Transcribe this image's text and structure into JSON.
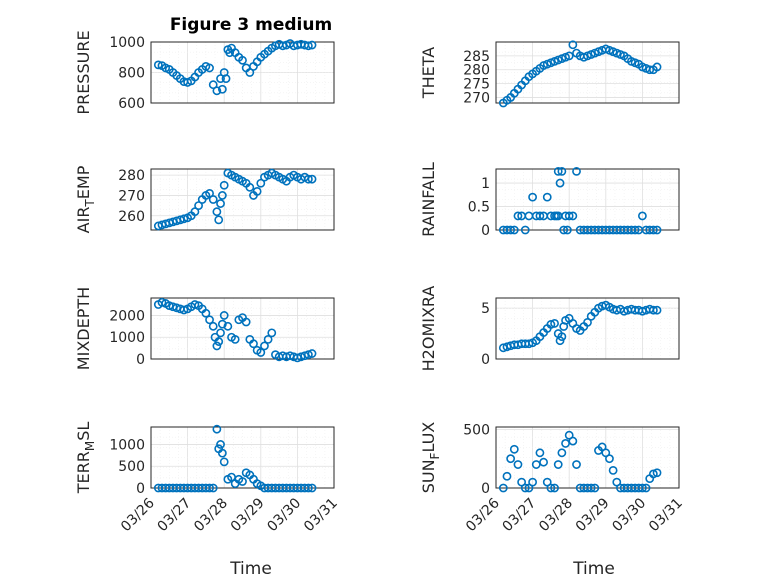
{
  "title": "Figure 3 medium",
  "colors": {
    "marker": "#0072bd",
    "axis": "#262626"
  },
  "chart_data": [
    {
      "type": "scatter",
      "ylabel": "PRESSURE",
      "ylim": [
        600,
        1000
      ],
      "yticks": [
        "600",
        "800",
        "1000"
      ],
      "xlim": [
        "03/26",
        "03/31"
      ],
      "xticks": [
        "03/26",
        "03/27",
        "03/28",
        "03/29",
        "03/30",
        "03/31"
      ],
      "series": [
        {
          "x": [
            0.2,
            0.3,
            0.4,
            0.5,
            0.6,
            0.7,
            0.8,
            0.9,
            1.0,
            1.1,
            1.2,
            1.3,
            1.4,
            1.5,
            1.6,
            1.7,
            1.8,
            1.9,
            1.95,
            2.0,
            2.05,
            2.1,
            2.15,
            2.2,
            2.3,
            2.4,
            2.5,
            2.6,
            2.7,
            2.8,
            2.9,
            3.0,
            3.1,
            3.2,
            3.3,
            3.4,
            3.5,
            3.6,
            3.7,
            3.8,
            3.9,
            4.0,
            4.1,
            4.2,
            4.3,
            4.4
          ],
          "y": [
            850,
            845,
            830,
            820,
            800,
            780,
            760,
            740,
            735,
            745,
            770,
            800,
            820,
            840,
            830,
            720,
            680,
            760,
            690,
            800,
            760,
            950,
            930,
            960,
            930,
            900,
            880,
            830,
            800,
            840,
            870,
            900,
            920,
            940,
            960,
            975,
            985,
            975,
            980,
            990,
            975,
            980,
            985,
            980,
            975,
            980
          ]
        }
      ]
    },
    {
      "type": "scatter",
      "ylabel": "THETA",
      "ylim": [
        268,
        290
      ],
      "yticks": [
        "270",
        "275",
        "280",
        "285"
      ],
      "xlim": [
        "03/26",
        "03/31"
      ],
      "xticks": [
        "03/26",
        "03/27",
        "03/28",
        "03/29",
        "03/30",
        "03/31"
      ],
      "series": [
        {
          "x": [
            0.2,
            0.3,
            0.4,
            0.5,
            0.6,
            0.7,
            0.8,
            0.9,
            1.0,
            1.1,
            1.2,
            1.3,
            1.4,
            1.5,
            1.6,
            1.7,
            1.8,
            1.9,
            2.0,
            2.1,
            2.2,
            2.3,
            2.4,
            2.5,
            2.6,
            2.7,
            2.8,
            2.9,
            3.0,
            3.1,
            3.2,
            3.3,
            3.4,
            3.5,
            3.6,
            3.7,
            3.8,
            3.9,
            4.0,
            4.1,
            4.2,
            4.3,
            4.4
          ],
          "y": [
            268,
            269,
            270,
            271.5,
            273,
            274.5,
            276,
            277.5,
            278.5,
            279.5,
            280.5,
            281.5,
            282,
            282.5,
            283,
            283.5,
            284,
            284.5,
            285,
            289,
            286,
            285,
            284.5,
            285,
            285.5,
            286,
            286.5,
            287,
            287.5,
            287,
            286.5,
            286,
            285.5,
            285,
            284,
            283,
            282.5,
            282,
            281,
            280.5,
            280,
            280,
            281
          ]
        }
      ]
    },
    {
      "type": "scatter",
      "ylabel": "AIR_TEMP",
      "ylim": [
        253,
        283
      ],
      "yticks": [
        "260",
        "270",
        "280"
      ],
      "xlim": [
        "03/26",
        "03/31"
      ],
      "xticks": [
        "03/26",
        "03/27",
        "03/28",
        "03/29",
        "03/30",
        "03/31"
      ],
      "series": [
        {
          "x": [
            0.2,
            0.3,
            0.4,
            0.5,
            0.6,
            0.7,
            0.8,
            0.9,
            1.0,
            1.1,
            1.2,
            1.3,
            1.4,
            1.5,
            1.6,
            1.7,
            1.8,
            1.85,
            1.9,
            1.95,
            2.0,
            2.1,
            2.2,
            2.3,
            2.4,
            2.5,
            2.6,
            2.7,
            2.8,
            2.9,
            3.0,
            3.1,
            3.2,
            3.3,
            3.4,
            3.5,
            3.6,
            3.7,
            3.8,
            3.9,
            4.0,
            4.1,
            4.2,
            4.3,
            4.4
          ],
          "y": [
            255,
            255.5,
            256,
            256.5,
            257,
            257.5,
            258,
            258.5,
            259,
            260,
            262,
            265,
            268,
            270,
            271,
            268,
            262,
            258,
            266,
            270,
            275,
            281,
            280,
            279,
            278,
            277,
            276,
            274,
            270,
            272,
            276,
            279,
            280,
            281,
            280,
            279,
            278,
            277,
            279,
            280,
            279,
            278,
            279,
            278,
            278
          ]
        }
      ]
    },
    {
      "type": "scatter",
      "ylabel": "RAINFALL",
      "ylim": [
        0,
        1.3
      ],
      "yticks": [
        "0",
        "0.5",
        "1"
      ],
      "xlim": [
        "03/26",
        "03/31"
      ],
      "xticks": [
        "03/26",
        "03/27",
        "03/28",
        "03/29",
        "03/30",
        "03/31"
      ],
      "series": [
        {
          "x": [
            0.2,
            0.3,
            0.4,
            0.5,
            0.6,
            0.7,
            0.8,
            0.9,
            1.0,
            1.1,
            1.2,
            1.3,
            1.4,
            1.5,
            1.6,
            1.7,
            1.75,
            1.8,
            1.85,
            1.9,
            1.95,
            2.0,
            2.1,
            2.2,
            2.3,
            2.4,
            2.5,
            2.6,
            2.7,
            2.8,
            2.9,
            3.0,
            3.1,
            3.2,
            3.3,
            3.4,
            3.5,
            3.6,
            3.7,
            3.8,
            3.9,
            4.0,
            4.1,
            4.2,
            4.3,
            4.4,
            1.65,
            1.7
          ],
          "y": [
            0,
            0,
            0,
            0,
            0.3,
            0.3,
            0,
            0.3,
            0.7,
            0.3,
            0.3,
            0.3,
            0.7,
            0.3,
            0.3,
            1.25,
            1.0,
            1.25,
            0,
            0.3,
            0,
            0.3,
            0.3,
            1.25,
            0,
            0,
            0,
            0,
            0,
            0,
            0,
            0,
            0,
            0,
            0,
            0,
            0,
            0,
            0,
            0,
            0,
            0.3,
            0,
            0,
            0,
            0,
            0.3,
            0.3
          ]
        }
      ]
    },
    {
      "type": "scatter",
      "ylabel": "MIXDEPTH",
      "ylim": [
        0,
        2800
      ],
      "yticks": [
        "0",
        "1000",
        "2000"
      ],
      "xlim": [
        "03/26",
        "03/31"
      ],
      "xticks": [
        "03/26",
        "03/27",
        "03/28",
        "03/29",
        "03/30",
        "03/31"
      ],
      "series": [
        {
          "x": [
            0.2,
            0.3,
            0.4,
            0.5,
            0.6,
            0.7,
            0.8,
            0.9,
            1.0,
            1.1,
            1.2,
            1.3,
            1.4,
            1.5,
            1.6,
            1.7,
            1.75,
            1.8,
            1.85,
            1.9,
            1.95,
            2.0,
            2.1,
            2.2,
            2.3,
            2.4,
            2.5,
            2.6,
            2.7,
            2.8,
            2.9,
            3.0,
            3.1,
            3.2,
            3.3,
            3.4,
            3.5,
            3.6,
            3.7,
            3.8,
            3.9,
            4.0,
            4.1,
            4.2,
            4.3,
            4.4
          ],
          "y": [
            2500,
            2600,
            2550,
            2450,
            2400,
            2350,
            2300,
            2250,
            2300,
            2400,
            2500,
            2450,
            2300,
            2100,
            1800,
            1500,
            1000,
            600,
            800,
            1200,
            1600,
            2000,
            1500,
            1000,
            900,
            1800,
            1900,
            1700,
            900,
            700,
            400,
            300,
            600,
            900,
            1200,
            200,
            100,
            150,
            100,
            150,
            100,
            50,
            100,
            150,
            200,
            250
          ]
        }
      ]
    },
    {
      "type": "scatter",
      "ylabel": "H2OMIXRA",
      "ylim": [
        0,
        6
      ],
      "yticks": [
        "0",
        "5"
      ],
      "xlim": [
        "03/26",
        "03/31"
      ],
      "xticks": [
        "03/26",
        "03/27",
        "03/28",
        "03/29",
        "03/30",
        "03/31"
      ],
      "series": [
        {
          "x": [
            0.2,
            0.3,
            0.4,
            0.5,
            0.6,
            0.7,
            0.8,
            0.9,
            1.0,
            1.1,
            1.2,
            1.3,
            1.4,
            1.5,
            1.6,
            1.7,
            1.75,
            1.8,
            1.85,
            1.9,
            2.0,
            2.1,
            2.2,
            2.3,
            2.4,
            2.5,
            2.6,
            2.7,
            2.8,
            2.9,
            3.0,
            3.1,
            3.2,
            3.3,
            3.4,
            3.5,
            3.6,
            3.7,
            3.8,
            3.9,
            4.0,
            4.1,
            4.2,
            4.3,
            4.4
          ],
          "y": [
            1.1,
            1.2,
            1.3,
            1.4,
            1.4,
            1.5,
            1.5,
            1.5,
            1.6,
            1.8,
            2.2,
            2.6,
            3.0,
            3.4,
            3.5,
            2.5,
            1.8,
            2.2,
            3.2,
            3.8,
            4.0,
            3.5,
            3.0,
            2.8,
            3.2,
            3.6,
            4.2,
            4.6,
            5.0,
            5.2,
            5.3,
            5.1,
            4.9,
            4.8,
            4.9,
            4.7,
            4.8,
            4.9,
            4.8,
            4.8,
            4.7,
            4.8,
            4.9,
            4.8,
            4.8
          ]
        }
      ]
    },
    {
      "type": "scatter",
      "ylabel": "TERR_MSL",
      "ylim": [
        0,
        1400
      ],
      "yticks": [
        "0",
        "500",
        "1000"
      ],
      "xlim": [
        "03/26",
        "03/31"
      ],
      "xticks": [
        "03/26",
        "03/27",
        "03/28",
        "03/29",
        "03/30",
        "03/31"
      ],
      "series": [
        {
          "x": [
            0.2,
            0.3,
            0.4,
            0.5,
            0.6,
            0.7,
            0.8,
            0.9,
            1.0,
            1.1,
            1.2,
            1.3,
            1.4,
            1.5,
            1.6,
            1.7,
            1.8,
            1.85,
            1.9,
            1.95,
            2.0,
            2.1,
            2.2,
            2.3,
            2.4,
            2.5,
            2.6,
            2.7,
            2.8,
            2.9,
            3.0,
            3.1,
            3.2,
            3.3,
            3.4,
            3.5,
            3.6,
            3.7,
            3.8,
            3.9,
            4.0,
            4.1,
            4.2,
            4.3,
            4.4
          ],
          "y": [
            0,
            0,
            0,
            0,
            0,
            0,
            0,
            0,
            0,
            0,
            0,
            0,
            0,
            0,
            0,
            0,
            1350,
            900,
            1000,
            800,
            600,
            200,
            250,
            100,
            200,
            150,
            350,
            300,
            200,
            100,
            50,
            0,
            0,
            0,
            0,
            0,
            0,
            0,
            0,
            0,
            0,
            0,
            0,
            0,
            0
          ]
        }
      ]
    },
    {
      "type": "scatter",
      "ylabel": "SUN_FLUX",
      "ylim": [
        0,
        520
      ],
      "yticks": [
        "0",
        "500"
      ],
      "xlim": [
        "03/26",
        "03/31"
      ],
      "xticks": [
        "03/26",
        "03/27",
        "03/28",
        "03/29",
        "03/30",
        "03/31"
      ],
      "series": [
        {
          "x": [
            0.2,
            0.3,
            0.4,
            0.5,
            0.6,
            0.7,
            0.8,
            0.9,
            1.0,
            1.1,
            1.2,
            1.3,
            1.4,
            1.5,
            1.6,
            1.7,
            1.8,
            1.9,
            2.0,
            2.1,
            2.2,
            2.3,
            2.4,
            2.5,
            2.6,
            2.7,
            2.8,
            2.9,
            3.0,
            3.1,
            3.2,
            3.3,
            3.4,
            3.5,
            3.6,
            3.7,
            3.8,
            3.9,
            4.0,
            4.1,
            4.2,
            4.3,
            4.4
          ],
          "y": [
            0,
            100,
            250,
            330,
            200,
            50,
            0,
            0,
            50,
            200,
            300,
            220,
            50,
            0,
            0,
            200,
            300,
            380,
            450,
            400,
            200,
            0,
            0,
            0,
            0,
            0,
            320,
            350,
            300,
            250,
            150,
            50,
            0,
            0,
            0,
            0,
            0,
            0,
            0,
            0,
            80,
            120,
            130
          ]
        }
      ]
    }
  ],
  "xlabel": "Time"
}
